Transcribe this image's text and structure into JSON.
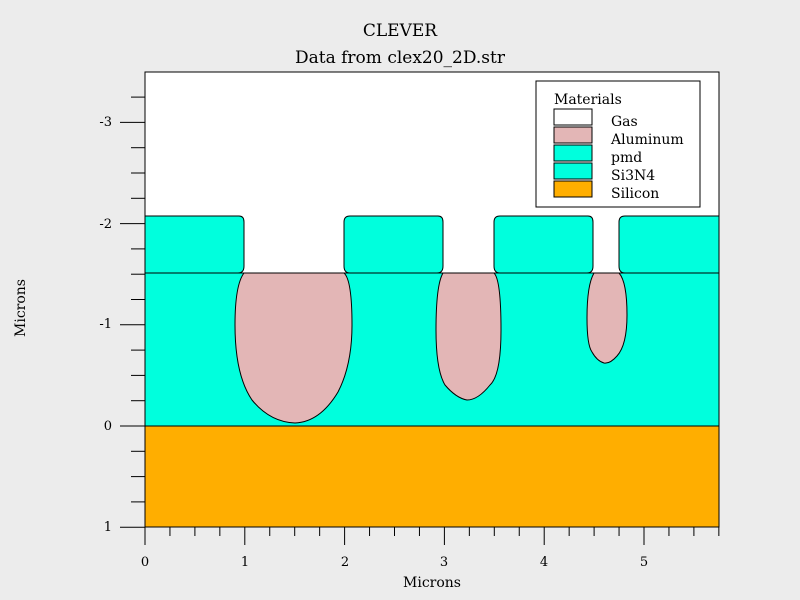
{
  "title": "CLEVER",
  "subtitle": "Data from clex20_2D.str",
  "xlabel": "Microns",
  "ylabel": "Microns",
  "legend": {
    "title": "Materials",
    "items": [
      {
        "name": "Gas",
        "color": "#ffffff"
      },
      {
        "name": "Aluminum",
        "color": "#e3b6b6"
      },
      {
        "name": "pmd",
        "color": "#00ffdd"
      },
      {
        "name": "Si3N4",
        "color": "#00ffdd"
      },
      {
        "name": "Silicon",
        "color": "#ffae00"
      }
    ]
  },
  "chart_data": {
    "type": "cross-section",
    "xlim": [
      0,
      5.75
    ],
    "ylim": [
      -3.5,
      1
    ],
    "y_inverted": true,
    "xticks": [
      "0",
      "1",
      "2",
      "3",
      "4",
      "5"
    ],
    "yticks": [
      "-3",
      "-2",
      "-1",
      "0",
      "1"
    ],
    "regions": {
      "silicon": {
        "x": [
          0,
          5.75
        ],
        "y": [
          0,
          1
        ]
      },
      "pmd": {
        "x": [
          0,
          5.75
        ],
        "y": [
          -1.52,
          0
        ]
      },
      "si3n4_blocks": [
        [
          0,
          1.0
        ],
        [
          2.0,
          3.0
        ],
        [
          3.5,
          4.5
        ],
        [
          4.75,
          5.75
        ]
      ],
      "si3n4_y": [
        -2.08,
        -1.52
      ],
      "aluminum_plugs": [
        {
          "x_left": 0.94,
          "x_right": 2.07,
          "bottom": -0.03
        },
        {
          "x_left": 2.93,
          "x_right": 3.57,
          "bottom": -0.27
        },
        {
          "x_left": 4.43,
          "x_right": 4.84,
          "bottom": -0.62
        }
      ]
    }
  }
}
